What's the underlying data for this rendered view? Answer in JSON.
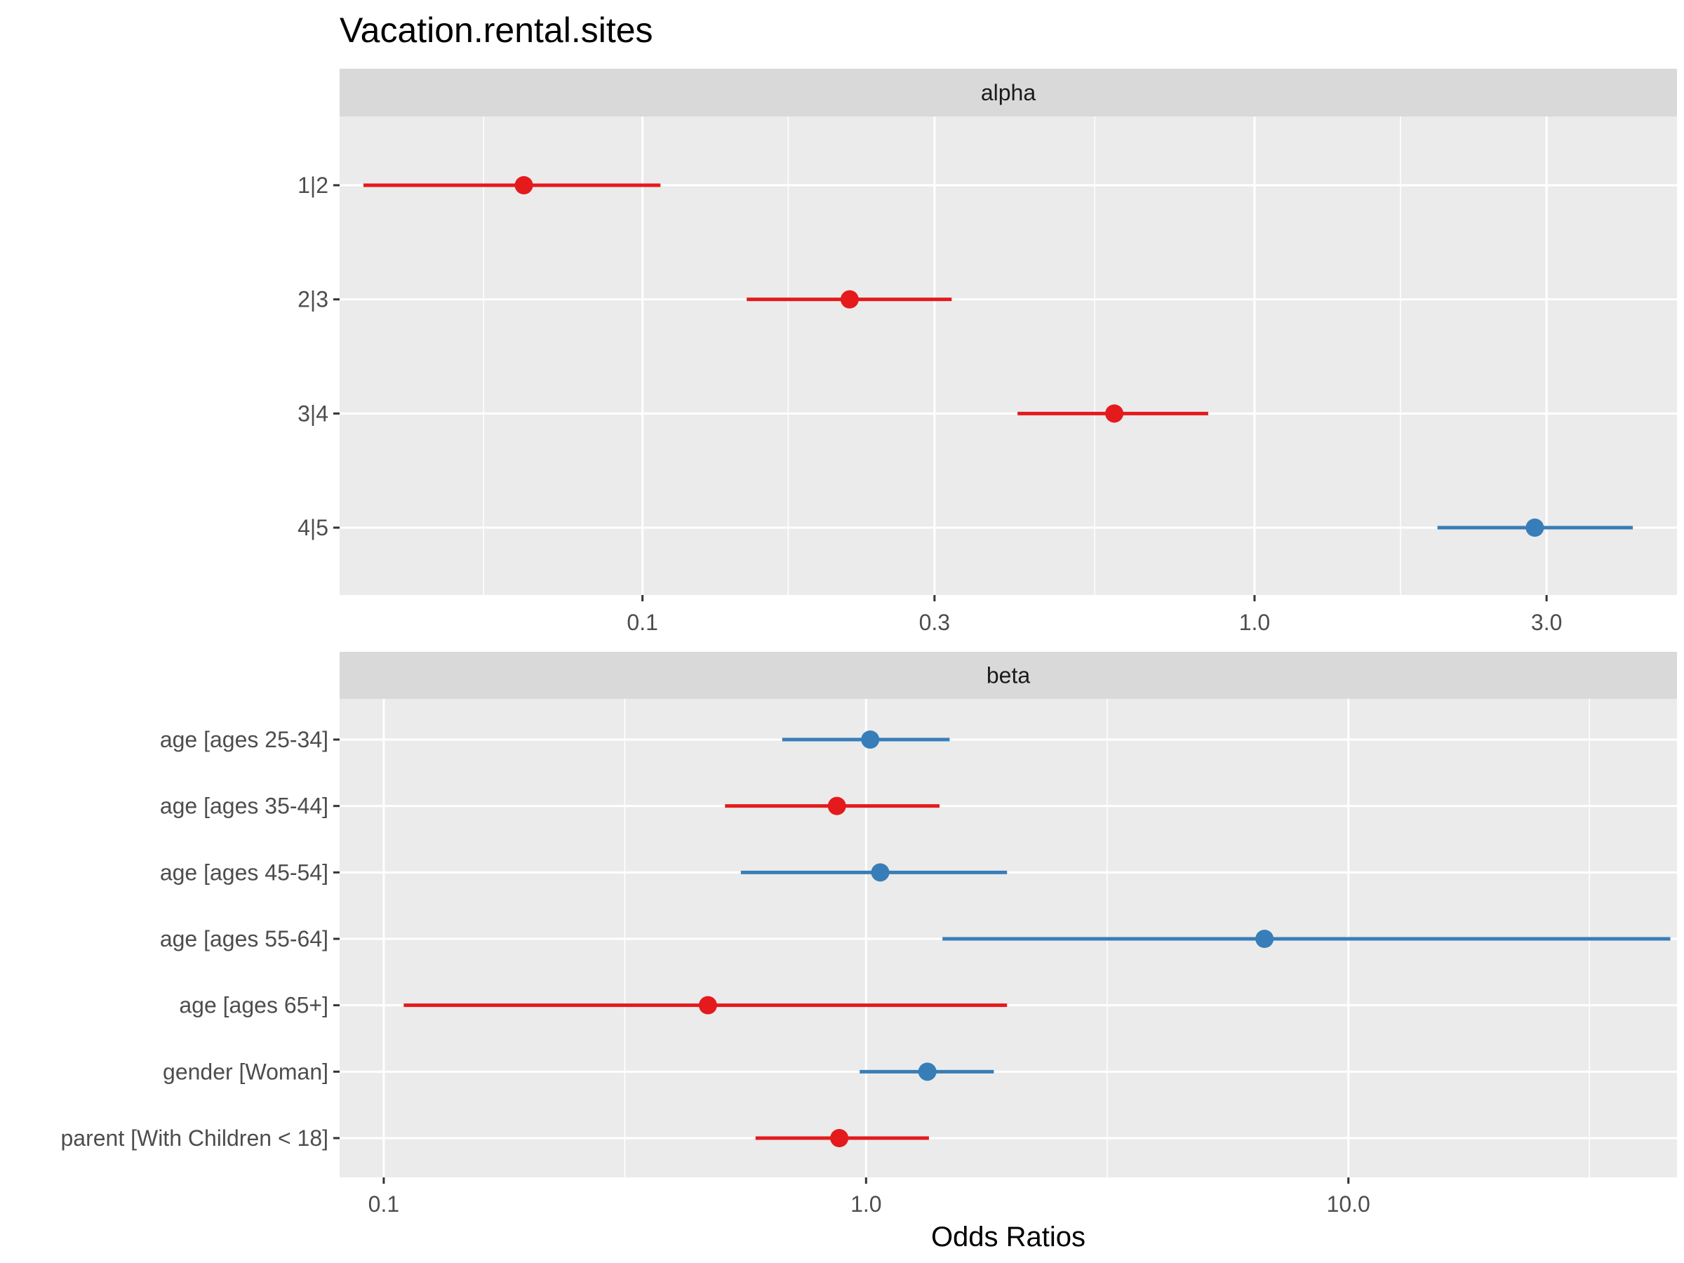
{
  "chart_data": {
    "type": "forest",
    "title": "Vacation.rental.sites",
    "xlabel": "Odds Ratios",
    "x_scale": "log10",
    "colors": {
      "positive": "#377EB8",
      "negative": "#E41A1C"
    },
    "panels": [
      {
        "strip": "alpha",
        "xlim": [
          0.032,
          4.9
        ],
        "x_ticks": [
          {
            "value": 0.1,
            "label": "0.1"
          },
          {
            "value": 0.3,
            "label": "0.3"
          },
          {
            "value": 1.0,
            "label": "1.0"
          },
          {
            "value": 3.0,
            "label": "3.0"
          }
        ],
        "x_minor": [
          0.055,
          0.173,
          0.548,
          1.732
        ],
        "terms": [
          {
            "label": "1|2",
            "estimate": 0.064,
            "ci_low": 0.035,
            "ci_high": 0.107,
            "direction": "negative"
          },
          {
            "label": "2|3",
            "estimate": 0.218,
            "ci_low": 0.148,
            "ci_high": 0.32,
            "direction": "negative"
          },
          {
            "label": "3|4",
            "estimate": 0.59,
            "ci_low": 0.41,
            "ci_high": 0.84,
            "direction": "negative"
          },
          {
            "label": "4|5",
            "estimate": 2.87,
            "ci_low": 1.99,
            "ci_high": 4.15,
            "direction": "positive"
          }
        ]
      },
      {
        "strip": "beta",
        "xlim": [
          0.081,
          48
        ],
        "x_ticks": [
          {
            "value": 0.1,
            "label": "0.1"
          },
          {
            "value": 1.0,
            "label": "1.0"
          },
          {
            "value": 10.0,
            "label": "10.0"
          }
        ],
        "x_minor": [
          0.316,
          3.16,
          31.6
        ],
        "terms": [
          {
            "label": "age [ages 25-34]",
            "estimate": 1.02,
            "ci_low": 0.67,
            "ci_high": 1.49,
            "direction": "positive"
          },
          {
            "label": "age [ages 35-44]",
            "estimate": 0.87,
            "ci_low": 0.51,
            "ci_high": 1.42,
            "direction": "negative"
          },
          {
            "label": "age [ages 45-54]",
            "estimate": 1.07,
            "ci_low": 0.55,
            "ci_high": 1.96,
            "direction": "positive"
          },
          {
            "label": "age [ages 55-64]",
            "estimate": 6.7,
            "ci_low": 1.44,
            "ci_high": 46.5,
            "direction": "positive"
          },
          {
            "label": "age [ages 65+]",
            "estimate": 0.47,
            "ci_low": 0.11,
            "ci_high": 1.96,
            "direction": "negative"
          },
          {
            "label": "gender [Woman]",
            "estimate": 1.34,
            "ci_low": 0.97,
            "ci_high": 1.84,
            "direction": "positive"
          },
          {
            "label": "parent [With Children < 18]",
            "estimate": 0.88,
            "ci_low": 0.59,
            "ci_high": 1.35,
            "direction": "negative"
          }
        ]
      }
    ]
  }
}
